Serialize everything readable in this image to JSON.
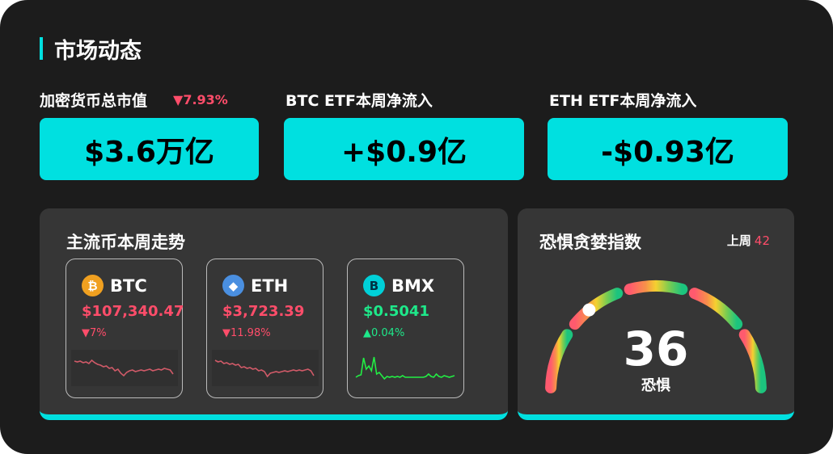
{
  "header": {
    "title": "市场动态"
  },
  "stats": [
    {
      "label": "加密货币总市值",
      "change": "▼7.93%",
      "value": "$3.6万亿"
    },
    {
      "label": "BTC ETF本周净流入",
      "value": "+$0.9亿"
    },
    {
      "label": "ETH ETF本周净流入",
      "value": "-$0.93亿"
    }
  ],
  "trends": {
    "title": "主流币本周走势",
    "coins": [
      {
        "symbol": "BTC",
        "icon": "bitcoin-icon",
        "price": "$107,340.47",
        "change": "▼7%",
        "direction": "down",
        "color": "#ff4d6a",
        "spark": [
          10,
          11,
          10,
          12,
          11,
          13,
          9,
          12,
          14,
          15,
          17,
          16,
          19,
          18,
          22,
          20,
          25,
          28,
          24,
          22,
          21,
          23,
          22,
          21,
          22,
          21,
          20,
          22,
          21,
          20,
          21,
          19,
          20,
          21,
          26
        ]
      },
      {
        "symbol": "ETH",
        "icon": "ethereum-icon",
        "price": "$3,723.39",
        "change": "▼11.98%",
        "direction": "down",
        "color": "#ff4d6a",
        "spark": [
          9,
          11,
          10,
          13,
          12,
          14,
          13,
          15,
          14,
          18,
          17,
          19,
          18,
          20,
          19,
          22,
          21,
          23,
          29,
          25,
          24,
          23,
          24,
          23,
          22,
          23,
          22,
          21,
          22,
          21,
          22,
          21,
          20,
          22,
          28
        ]
      },
      {
        "symbol": "BMX",
        "icon": "bmx-icon",
        "price": "$0.5041",
        "change": "▲0.04%",
        "direction": "up",
        "color": "#1ee88a",
        "spark": [
          30,
          28,
          27,
          6,
          20,
          16,
          22,
          5,
          26,
          24,
          28,
          32,
          29,
          30,
          29,
          30,
          29,
          30,
          28,
          30,
          30,
          30,
          30,
          30,
          30,
          30,
          30,
          29,
          26,
          29,
          30,
          26,
          29,
          30,
          28,
          29,
          30,
          29,
          28
        ]
      }
    ]
  },
  "fear_greed": {
    "title": "恐惧贪婪指数",
    "last_week_label": "上周",
    "last_week_value": "42",
    "value": 36,
    "value_text": "36",
    "label": "恐惧",
    "range": [
      0,
      100
    ]
  }
}
